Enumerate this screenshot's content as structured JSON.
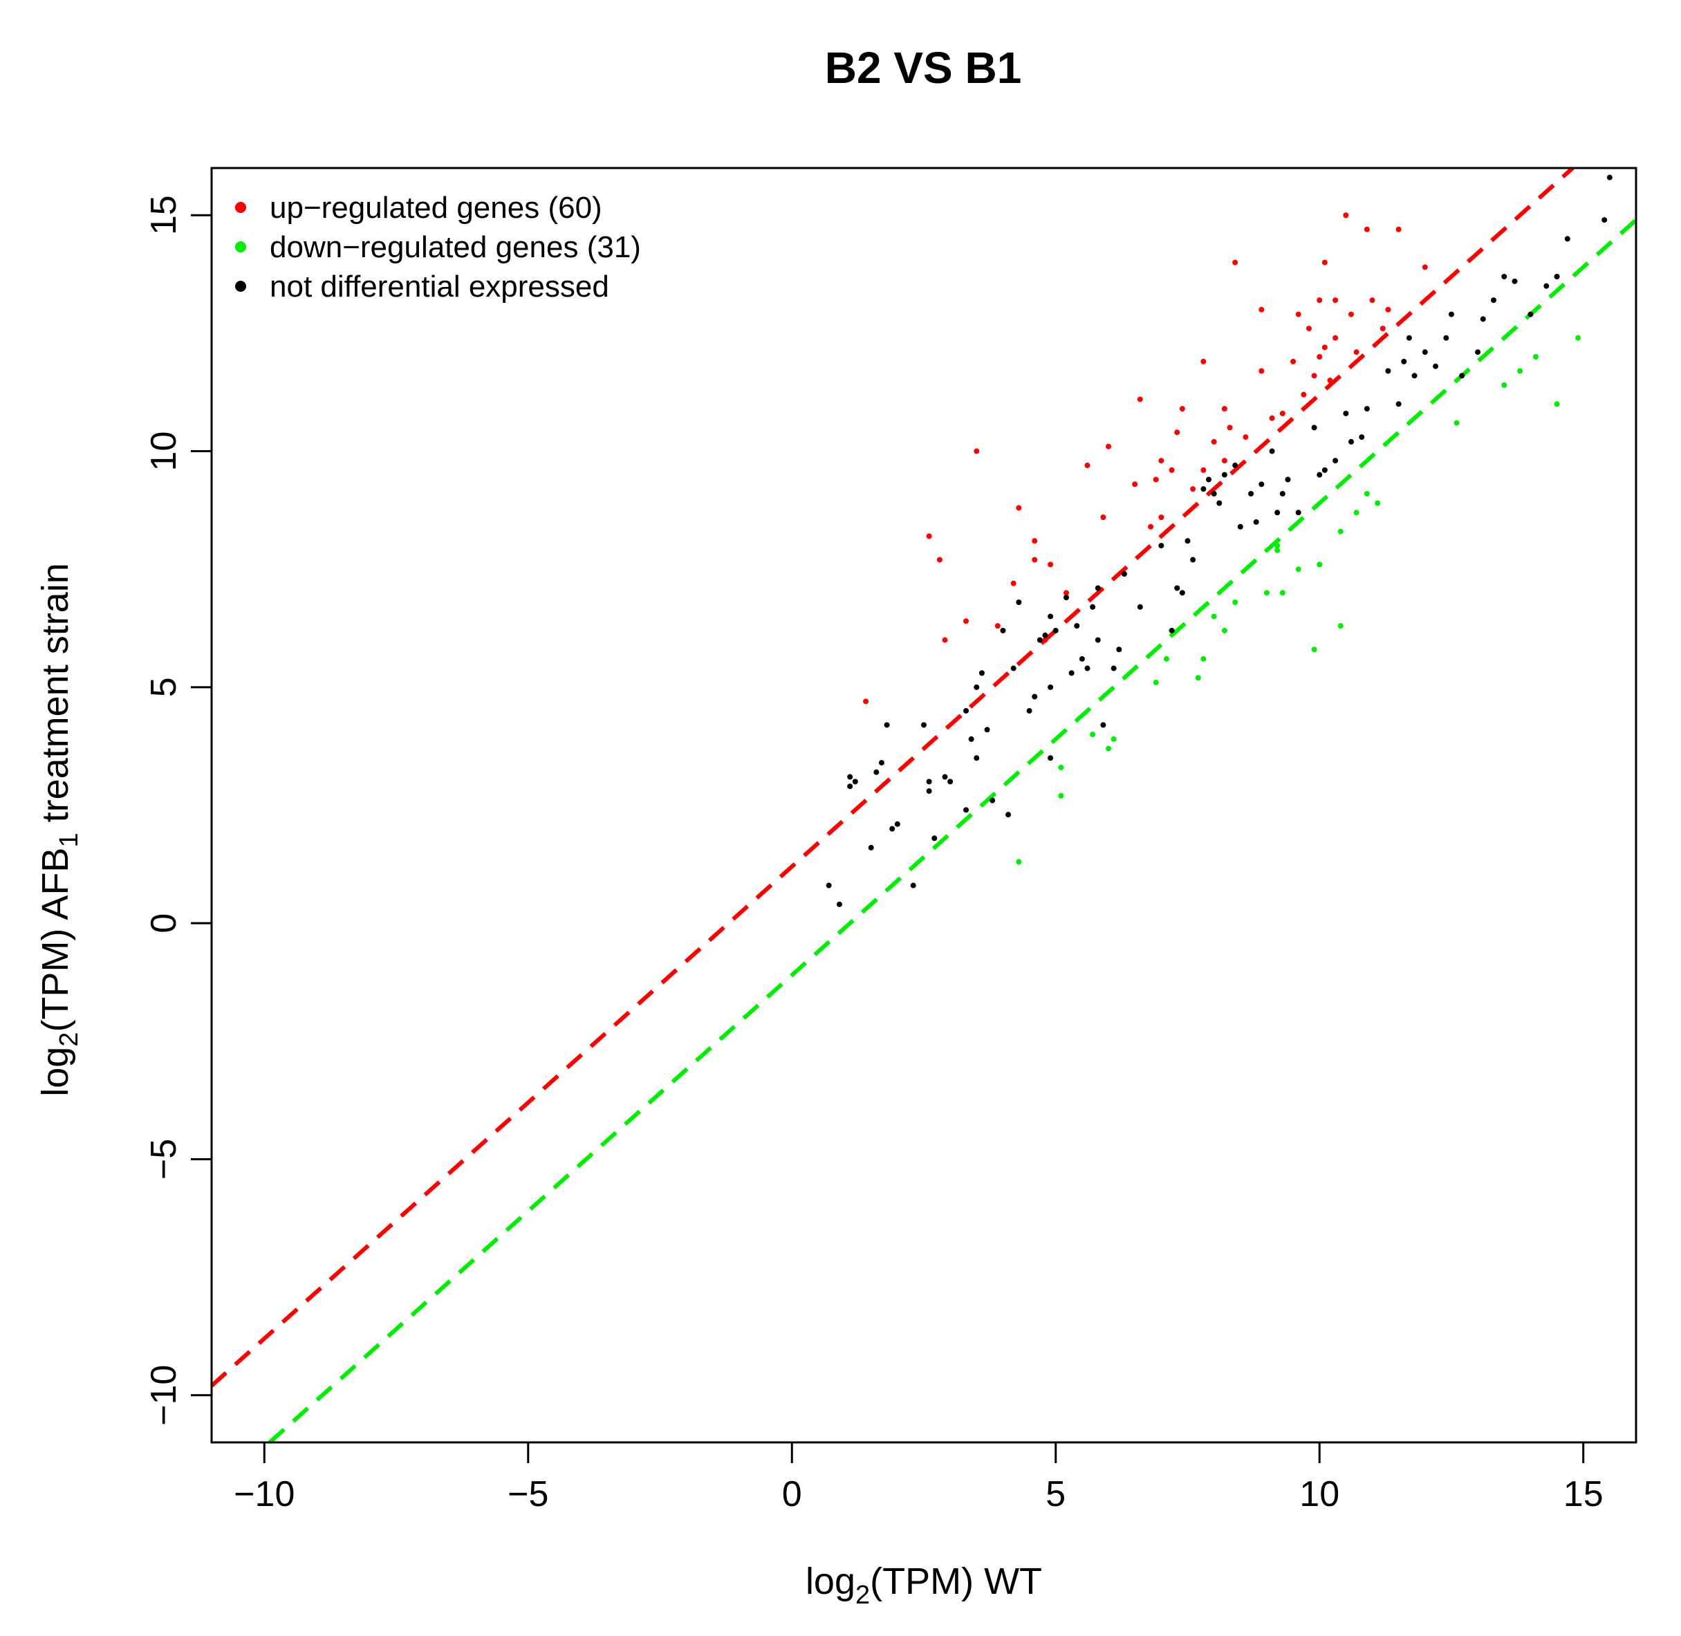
{
  "chart_data": {
    "type": "scatter",
    "title": "B2 VS B1",
    "xlabel": {
      "pre": "log",
      "sub": "2",
      "post": "(TPM) WT"
    },
    "ylabel": {
      "pre": "log",
      "sub1": "2",
      "mid": "(TPM) AFB",
      "sub2": "1",
      "post": " treatment strain"
    },
    "xlim": [
      -11,
      16
    ],
    "ylim": [
      -11,
      16
    ],
    "xticks": [
      -10,
      -5,
      0,
      5,
      10,
      15
    ],
    "yticks": [
      -10,
      -5,
      0,
      5,
      10,
      15
    ],
    "tick_labels": [
      "−10",
      "−5",
      "0",
      "5",
      "10",
      "15"
    ],
    "grid": false,
    "legend_position": "top-left",
    "colors": {
      "up": "#ff0000",
      "down": "#00ee00",
      "nd": "#000000"
    },
    "legend": [
      {
        "label": "up−regulated genes (60)",
        "color": "#ff0000"
      },
      {
        "label": "down−regulated genes (31)",
        "color": "#00ee00"
      },
      {
        "label": "not differential expressed",
        "color": "#000000"
      }
    ],
    "reference_lines": [
      {
        "color": "#ff0000",
        "intercept": 1.2,
        "slope": 1
      },
      {
        "color": "#00ee00",
        "intercept": -1.1,
        "slope": 1
      }
    ],
    "series": [
      {
        "key": "up",
        "color": "#ff0000",
        "points": [
          [
            1.4,
            4.7
          ],
          [
            2.6,
            8.2
          ],
          [
            2.8,
            7.7
          ],
          [
            3.3,
            6.4
          ],
          [
            3.5,
            10.0
          ],
          [
            3.9,
            6.3
          ],
          [
            4.3,
            8.8
          ],
          [
            4.6,
            7.7
          ],
          [
            4.6,
            8.1
          ],
          [
            4.9,
            7.6
          ],
          [
            5.6,
            9.7
          ],
          [
            6.0,
            10.1
          ],
          [
            6.5,
            9.3
          ],
          [
            6.6,
            11.1
          ],
          [
            6.9,
            9.4
          ],
          [
            7.0,
            8.6
          ],
          [
            7.0,
            9.8
          ],
          [
            7.2,
            9.6
          ],
          [
            7.4,
            10.9
          ],
          [
            7.8,
            11.9
          ],
          [
            7.8,
            9.6
          ],
          [
            8.2,
            10.9
          ],
          [
            8.2,
            9.8
          ],
          [
            8.3,
            10.5
          ],
          [
            8.4,
            14.0
          ],
          [
            8.6,
            10.3
          ],
          [
            8.9,
            11.7
          ],
          [
            8.9,
            13.0
          ],
          [
            9.1,
            10.7
          ],
          [
            9.3,
            10.8
          ],
          [
            9.7,
            11.2
          ],
          [
            9.8,
            12.6
          ],
          [
            9.9,
            11.6
          ],
          [
            10.0,
            13.2
          ],
          [
            10.0,
            12.0
          ],
          [
            10.1,
            14.0
          ],
          [
            10.1,
            12.2
          ],
          [
            10.2,
            11.5
          ],
          [
            10.3,
            12.4
          ],
          [
            10.3,
            13.2
          ],
          [
            10.5,
            15.0
          ],
          [
            10.6,
            12.9
          ],
          [
            10.9,
            14.7
          ],
          [
            11.0,
            13.2
          ],
          [
            11.2,
            12.6
          ],
          [
            11.5,
            14.7
          ],
          [
            12.0,
            13.9
          ],
          [
            4.8,
            6.0
          ],
          [
            5.2,
            7.0
          ],
          [
            6.8,
            8.4
          ],
          [
            7.6,
            9.2
          ],
          [
            8.0,
            10.2
          ],
          [
            9.5,
            11.9
          ],
          [
            10.7,
            12.1
          ],
          [
            11.3,
            13.0
          ],
          [
            2.9,
            6.0
          ],
          [
            4.2,
            7.2
          ],
          [
            5.9,
            8.6
          ],
          [
            7.3,
            10.4
          ],
          [
            9.6,
            12.9
          ]
        ]
      },
      {
        "key": "down",
        "color": "#00ee00",
        "points": [
          [
            4.3,
            1.3
          ],
          [
            5.1,
            2.7
          ],
          [
            5.1,
            3.3
          ],
          [
            5.7,
            4.0
          ],
          [
            6.0,
            3.7
          ],
          [
            6.9,
            5.1
          ],
          [
            7.7,
            5.2
          ],
          [
            7.8,
            5.6
          ],
          [
            8.0,
            6.5
          ],
          [
            8.2,
            6.2
          ],
          [
            9.0,
            7.0
          ],
          [
            9.2,
            7.9
          ],
          [
            9.2,
            8.0
          ],
          [
            9.3,
            7.0
          ],
          [
            9.9,
            5.8
          ],
          [
            10.0,
            7.6
          ],
          [
            10.4,
            6.3
          ],
          [
            10.4,
            8.3
          ],
          [
            10.9,
            9.1
          ],
          [
            11.1,
            8.9
          ],
          [
            13.5,
            11.4
          ],
          [
            14.1,
            12.0
          ],
          [
            14.5,
            11.0
          ],
          [
            14.9,
            12.4
          ],
          [
            6.1,
            3.9
          ],
          [
            7.1,
            5.6
          ],
          [
            8.4,
            6.8
          ],
          [
            9.6,
            7.5
          ],
          [
            10.7,
            8.7
          ],
          [
            12.6,
            10.6
          ],
          [
            13.8,
            11.7
          ]
        ]
      },
      {
        "key": "nd",
        "color": "#000000",
        "points": [
          [
            0.7,
            0.8
          ],
          [
            0.9,
            0.4
          ],
          [
            1.1,
            2.9
          ],
          [
            1.1,
            3.1
          ],
          [
            1.2,
            3.0
          ],
          [
            1.5,
            1.6
          ],
          [
            1.6,
            3.2
          ],
          [
            1.7,
            3.4
          ],
          [
            1.8,
            4.2
          ],
          [
            1.9,
            2.0
          ],
          [
            2.0,
            2.1
          ],
          [
            2.3,
            0.8
          ],
          [
            2.5,
            4.2
          ],
          [
            2.6,
            3.0
          ],
          [
            2.6,
            2.8
          ],
          [
            2.7,
            1.8
          ],
          [
            2.9,
            3.1
          ],
          [
            3.3,
            2.4
          ],
          [
            3.3,
            4.5
          ],
          [
            3.4,
            3.9
          ],
          [
            3.5,
            3.5
          ],
          [
            3.5,
            5.0
          ],
          [
            3.6,
            5.3
          ],
          [
            3.7,
            4.1
          ],
          [
            3.8,
            2.6
          ],
          [
            4.0,
            6.2
          ],
          [
            4.1,
            2.3
          ],
          [
            4.2,
            5.4
          ],
          [
            4.3,
            6.8
          ],
          [
            4.6,
            4.8
          ],
          [
            4.7,
            6.0
          ],
          [
            4.8,
            6.1
          ],
          [
            4.9,
            6.5
          ],
          [
            4.9,
            5.0
          ],
          [
            4.9,
            3.5
          ],
          [
            5.0,
            6.2
          ],
          [
            5.2,
            6.9
          ],
          [
            5.3,
            5.3
          ],
          [
            5.4,
            6.3
          ],
          [
            5.5,
            5.6
          ],
          [
            5.6,
            5.4
          ],
          [
            5.7,
            6.7
          ],
          [
            5.8,
            7.1
          ],
          [
            5.9,
            4.2
          ],
          [
            6.1,
            5.4
          ],
          [
            6.2,
            5.8
          ],
          [
            6.6,
            6.7
          ],
          [
            7.0,
            8.0
          ],
          [
            7.2,
            6.2
          ],
          [
            7.3,
            7.1
          ],
          [
            7.4,
            7.0
          ],
          [
            7.5,
            8.1
          ],
          [
            7.6,
            7.7
          ],
          [
            7.8,
            9.2
          ],
          [
            7.9,
            9.4
          ],
          [
            8.0,
            9.1
          ],
          [
            8.2,
            9.5
          ],
          [
            8.4,
            9.7
          ],
          [
            8.5,
            8.4
          ],
          [
            8.7,
            9.1
          ],
          [
            8.8,
            8.5
          ],
          [
            8.9,
            9.3
          ],
          [
            9.1,
            10.0
          ],
          [
            9.2,
            8.7
          ],
          [
            9.4,
            9.4
          ],
          [
            9.6,
            8.7
          ],
          [
            9.9,
            10.5
          ],
          [
            10.0,
            9.5
          ],
          [
            10.1,
            9.6
          ],
          [
            10.3,
            9.8
          ],
          [
            10.6,
            10.2
          ],
          [
            10.8,
            10.3
          ],
          [
            10.9,
            10.9
          ],
          [
            11.3,
            11.7
          ],
          [
            11.5,
            11.0
          ],
          [
            11.6,
            11.9
          ],
          [
            11.7,
            12.4
          ],
          [
            11.8,
            11.6
          ],
          [
            12.0,
            12.1
          ],
          [
            12.2,
            11.8
          ],
          [
            12.4,
            12.4
          ],
          [
            12.7,
            11.6
          ],
          [
            13.0,
            12.1
          ],
          [
            13.1,
            12.8
          ],
          [
            13.3,
            13.2
          ],
          [
            13.5,
            13.7
          ],
          [
            13.7,
            13.6
          ],
          [
            14.0,
            12.9
          ],
          [
            14.3,
            13.5
          ],
          [
            14.5,
            13.7
          ],
          [
            14.7,
            14.5
          ],
          [
            15.4,
            14.9
          ],
          [
            15.5,
            15.8
          ],
          [
            3.0,
            3.0
          ],
          [
            6.3,
            7.4
          ],
          [
            8.1,
            8.9
          ],
          [
            10.5,
            10.8
          ],
          [
            12.5,
            12.9
          ],
          [
            4.5,
            4.5
          ],
          [
            5.8,
            6.0
          ],
          [
            9.3,
            9.1
          ]
        ]
      }
    ]
  }
}
